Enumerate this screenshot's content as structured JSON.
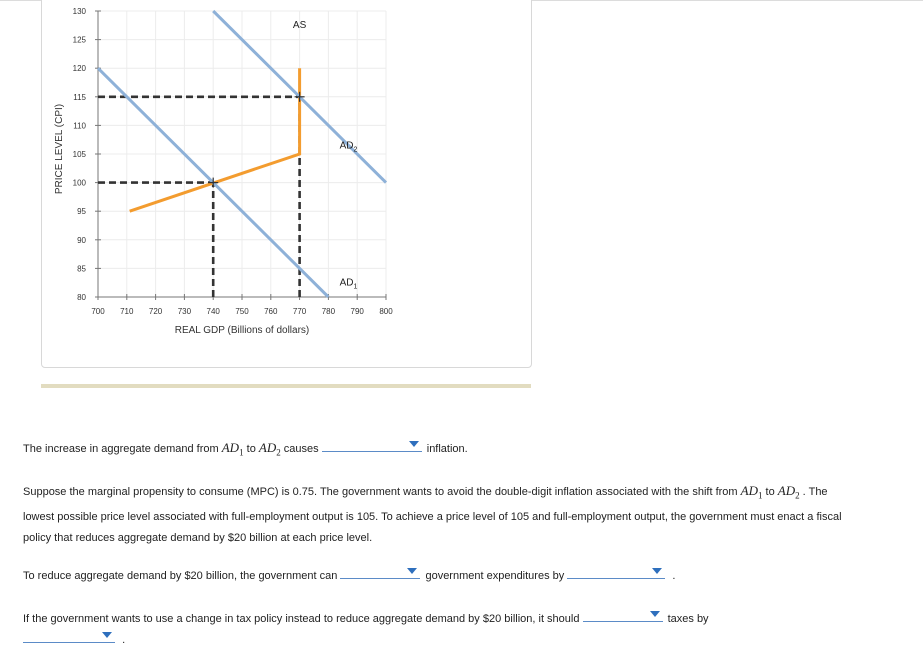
{
  "chart_data": {
    "type": "line",
    "xlabel": "REAL GDP (Billions of dollars)",
    "ylabel": "PRICE LEVEL (CPI)",
    "xlim": [
      700,
      800
    ],
    "ylim": [
      80,
      130
    ],
    "x_ticks": [
      700,
      710,
      720,
      730,
      740,
      750,
      760,
      770,
      780,
      790,
      800
    ],
    "y_ticks": [
      80,
      85,
      90,
      95,
      100,
      105,
      110,
      115,
      120,
      125,
      130
    ],
    "grid": true,
    "series": [
      {
        "name": "AS",
        "color": "#f39c2f",
        "points": [
          [
            711,
            95
          ],
          [
            770,
            105
          ],
          [
            770,
            120
          ]
        ]
      },
      {
        "name": "AD1",
        "color": "#8eb1d8",
        "points": [
          [
            700,
            120
          ],
          [
            780,
            80
          ]
        ]
      },
      {
        "name": "AD2",
        "color": "#8eb1d8",
        "points": [
          [
            740,
            130
          ],
          [
            800,
            100
          ]
        ]
      }
    ],
    "guides": [
      {
        "kind": "h",
        "y": 115,
        "x_to": 770
      },
      {
        "kind": "v",
        "x": 770,
        "y_to": 115
      },
      {
        "kind": "h",
        "y": 100,
        "x_to": 740
      },
      {
        "kind": "v",
        "x": 740,
        "y_to": 100
      }
    ],
    "points": [
      [
        770,
        115
      ],
      [
        740,
        100
      ]
    ],
    "labels": [
      {
        "text": "AS",
        "x": 770,
        "y": 127
      },
      {
        "text": "AD",
        "sub": "2",
        "x": 787,
        "y": 106
      },
      {
        "text": "AD",
        "sub": "1",
        "x": 787,
        "y": 82
      }
    ]
  },
  "q1": {
    "before": "The increase in aggregate demand from ",
    "ad1": "AD",
    "ad1_sub": "1",
    "to": " to ",
    "ad2": "AD",
    "ad2_sub": "2",
    "causes": " causes ",
    "after": "inflation."
  },
  "para": {
    "part1": "Suppose the marginal propensity to consume (MPC) is 0.75. The government wants to avoid the double-digit inflation associated with the shift from",
    "ad1": "AD",
    "ad1_sub": "1",
    "to": " to ",
    "ad2": "AD",
    "ad2_sub": "2",
    "part2": " . The lowest possible price level associated with full-employment output is 105. To achieve a price level of 105 and full-employment output, the government must enact a fiscal policy that reduces aggregate demand by $20 billion at each price level."
  },
  "q2": {
    "before": "To reduce aggregate demand by $20 billion, the government can ",
    "middle": "government expenditures by ",
    "end": "."
  },
  "q3": {
    "before": "If the government wants to use a change in tax policy instead to reduce aggregate demand by $20 billion, it should ",
    "middle": "taxes by",
    "end": "."
  }
}
